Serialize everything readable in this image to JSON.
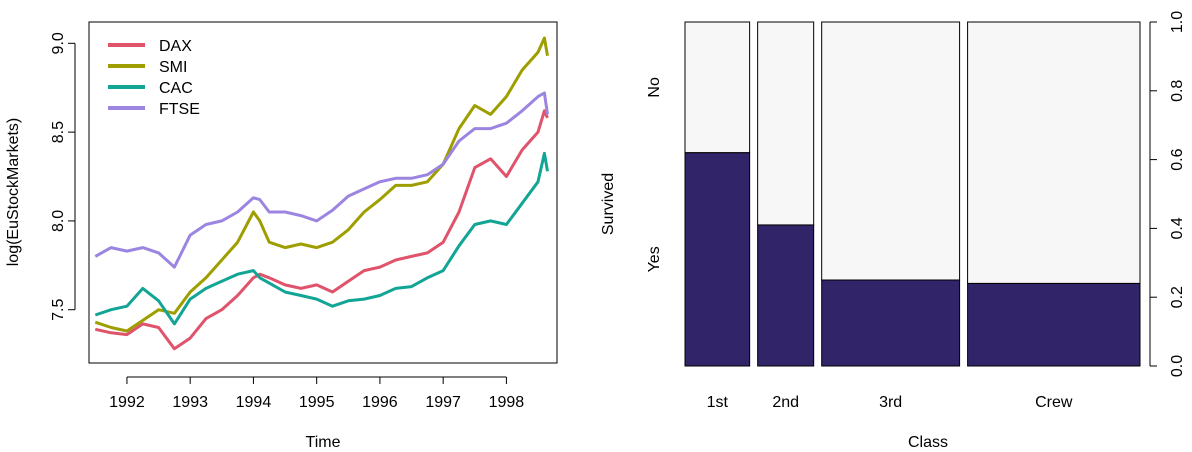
{
  "chart_data": [
    {
      "type": "line",
      "title": "",
      "xlabel": "Time",
      "ylabel": "log(EuStockMarkets)",
      "xlim": [
        1991.4,
        1998.8
      ],
      "ylim": [
        7.2,
        9.12
      ],
      "x_ticks": [
        "1992",
        "1993",
        "1994",
        "1995",
        "1996",
        "1997",
        "1998"
      ],
      "y_ticks": [
        "7.5",
        "8.0",
        "8.5",
        "9.0"
      ],
      "grid": false,
      "legend_position": "top-left",
      "colors": {
        "DAX": "#DF536B",
        "SMI": "#9E9E00",
        "CAC": "#12A595",
        "FTSE": "#9B85E0"
      },
      "x": [
        1991.5,
        1991.75,
        1992.0,
        1992.25,
        1992.5,
        1992.75,
        1993.0,
        1993.25,
        1993.5,
        1993.75,
        1994.0,
        1994.1,
        1994.25,
        1994.5,
        1994.75,
        1995.0,
        1995.25,
        1995.5,
        1995.75,
        1996.0,
        1996.25,
        1996.5,
        1996.75,
        1997.0,
        1997.25,
        1997.5,
        1997.75,
        1998.0,
        1998.25,
        1998.5,
        1998.6,
        1998.65
      ],
      "series": [
        {
          "name": "DAX",
          "values": [
            7.39,
            7.37,
            7.36,
            7.42,
            7.4,
            7.28,
            7.34,
            7.45,
            7.5,
            7.58,
            7.68,
            7.7,
            7.68,
            7.64,
            7.62,
            7.64,
            7.6,
            7.66,
            7.72,
            7.74,
            7.78,
            7.8,
            7.82,
            7.88,
            8.05,
            8.3,
            8.35,
            8.25,
            8.4,
            8.5,
            8.62,
            8.58
          ]
        },
        {
          "name": "SMI",
          "values": [
            7.43,
            7.4,
            7.38,
            7.44,
            7.5,
            7.48,
            7.6,
            7.68,
            7.78,
            7.88,
            8.05,
            8.0,
            7.88,
            7.85,
            7.87,
            7.85,
            7.88,
            7.95,
            8.05,
            8.12,
            8.2,
            8.2,
            8.22,
            8.32,
            8.52,
            8.65,
            8.6,
            8.7,
            8.85,
            8.95,
            9.03,
            8.93
          ]
        },
        {
          "name": "CAC",
          "values": [
            7.47,
            7.5,
            7.52,
            7.62,
            7.55,
            7.42,
            7.56,
            7.62,
            7.66,
            7.7,
            7.72,
            7.68,
            7.65,
            7.6,
            7.58,
            7.56,
            7.52,
            7.55,
            7.56,
            7.58,
            7.62,
            7.63,
            7.68,
            7.72,
            7.86,
            7.98,
            8.0,
            7.98,
            8.1,
            8.22,
            8.38,
            8.28
          ]
        },
        {
          "name": "FTSE",
          "values": [
            7.8,
            7.85,
            7.83,
            7.85,
            7.82,
            7.74,
            7.92,
            7.98,
            8.0,
            8.05,
            8.13,
            8.12,
            8.05,
            8.05,
            8.03,
            8.0,
            8.06,
            8.14,
            8.18,
            8.22,
            8.24,
            8.24,
            8.26,
            8.32,
            8.45,
            8.52,
            8.52,
            8.55,
            8.62,
            8.7,
            8.72,
            8.6
          ]
        }
      ]
    },
    {
      "type": "bar",
      "title": "",
      "xlabel": "Class",
      "ylabel": "Survived",
      "categories": [
        "1st",
        "2nd",
        "3rd",
        "Crew"
      ],
      "widths": [
        0.15,
        0.13,
        0.32,
        0.4
      ],
      "levels": [
        "Yes",
        "No"
      ],
      "series": [
        {
          "name": "Yes",
          "values": [
            0.62,
            0.41,
            0.25,
            0.24
          ]
        },
        {
          "name": "No",
          "values": [
            0.38,
            0.59,
            0.75,
            0.76
          ]
        }
      ],
      "ylim": [
        0,
        1
      ],
      "y_ticks": [
        "0.0",
        "0.2",
        "0.4",
        "0.6",
        "0.8",
        "1.0"
      ],
      "colors": {
        "Yes": "#322469",
        "No": "#F7F7F7"
      }
    }
  ]
}
